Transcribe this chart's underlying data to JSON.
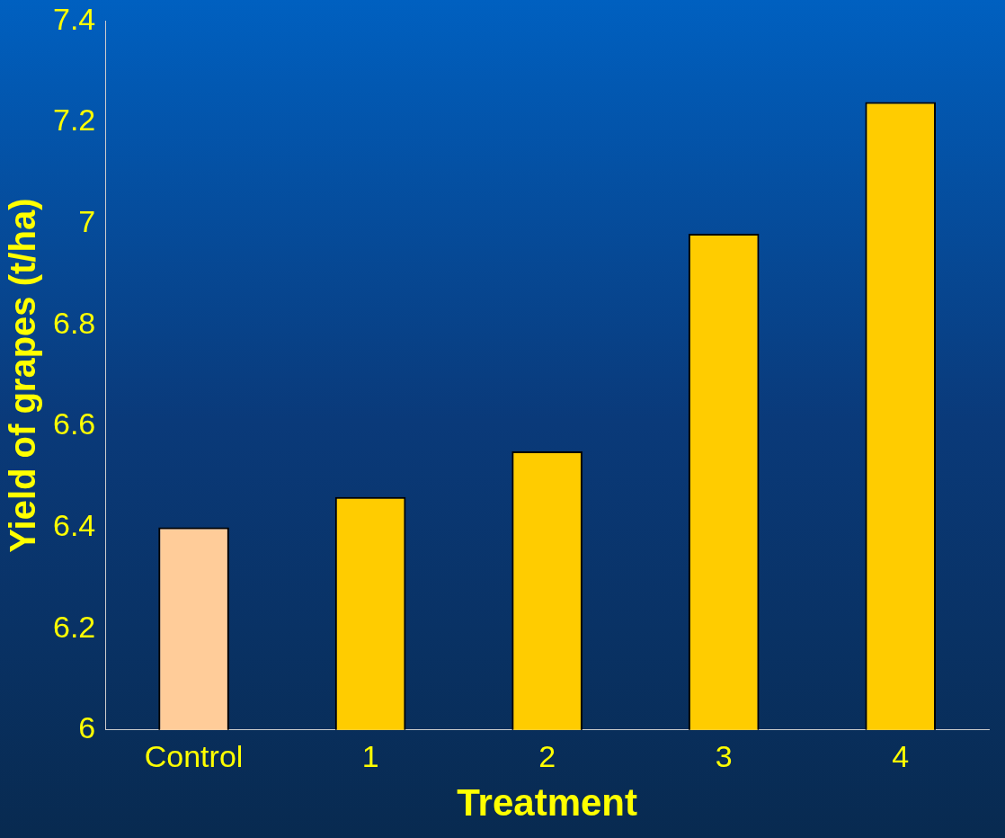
{
  "chart_data": {
    "type": "bar",
    "xlabel": "Treatment",
    "ylabel": "Yield of grapes (t/ha)",
    "categories": [
      "Control",
      "1",
      "2",
      "3",
      "4"
    ],
    "values": [
      6.4,
      6.46,
      6.55,
      6.98,
      7.24
    ],
    "colors": [
      "#ffcc99",
      "#ffcc00",
      "#ffcc00",
      "#ffcc00",
      "#ffcc00"
    ],
    "ylim": [
      6,
      7.4
    ],
    "yticks": [
      6,
      6.2,
      6.4,
      6.6,
      6.8,
      7,
      7.2,
      7.4
    ],
    "grid": false,
    "legend": false
  }
}
